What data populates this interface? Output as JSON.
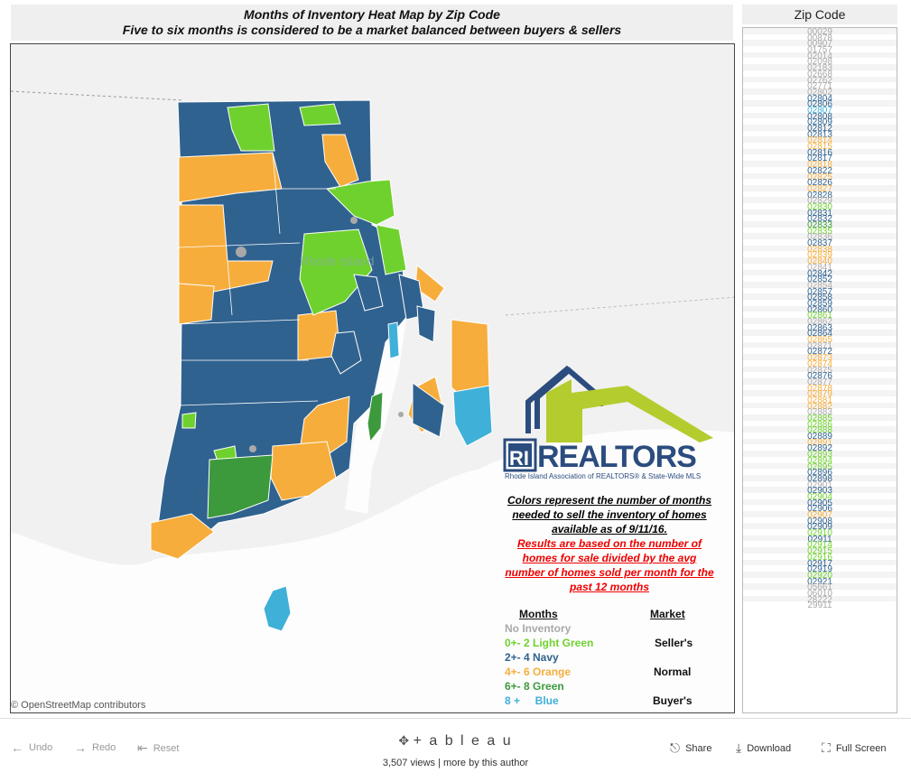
{
  "title": {
    "line1": "Months of Inventory Heat Map by Zip Code",
    "line2": "Five to six months is considered to be a market balanced between buyers & sellers"
  },
  "map": {
    "state_label": "Rhode Island",
    "attribution": "© OpenStreetMap contributors",
    "colors": {
      "no_inventory": "#a9a9a9",
      "light_green": "#6fd12e",
      "navy": "#30628f",
      "orange": "#f7ad3c",
      "green": "#3c9a3c",
      "blue": "#3fb0d8"
    }
  },
  "logo": {
    "brand": "RI REALTORS",
    "tagline": "Rhode Island Association of REALTORS® & State-Wide MLS"
  },
  "notes": {
    "black": "Colors represent the number of months needed to sell the inventory of homes available as of 9/11/16.",
    "red": "Results are based on the number of homes for sale divided by the avg number of homes sold per month for the past 12 months"
  },
  "legend": {
    "months_header": "Months",
    "market_header": "Market",
    "rows": [
      {
        "label": "No Inventory",
        "color": "#a9a9a9"
      },
      {
        "label": "0+- 2 Light Green",
        "color": "#6fd12e"
      },
      {
        "label": "2+- 4 Navy",
        "color": "#30628f"
      },
      {
        "label": "4+- 6 Orange",
        "color": "#f7ad3c"
      },
      {
        "label": "6+- 8 Green",
        "color": "#3c9a3c"
      },
      {
        "label": "8 +     Blue",
        "color": "#3fb0d8"
      }
    ],
    "markets": [
      "Seller's",
      "Normal",
      "Buyer's"
    ]
  },
  "zip_panel": {
    "header": "Zip Code",
    "zips": [
      {
        "z": "00029",
        "c": "#a9a9a9"
      },
      {
        "z": "00878",
        "c": "#a9a9a9"
      },
      {
        "z": "00907",
        "c": "#a9a9a9"
      },
      {
        "z": "01757",
        "c": "#a9a9a9"
      },
      {
        "z": "02014",
        "c": "#a9a9a9"
      },
      {
        "z": "02098",
        "c": "#a9a9a9"
      },
      {
        "z": "02183",
        "c": "#a9a9a9"
      },
      {
        "z": "02668",
        "c": "#a9a9a9"
      },
      {
        "z": "02762",
        "c": "#a9a9a9"
      },
      {
        "z": "02771",
        "c": "#a9a9a9"
      },
      {
        "z": "02802",
        "c": "#a9a9a9"
      },
      {
        "z": "02804",
        "c": "#30628f"
      },
      {
        "z": "02806",
        "c": "#30628f"
      },
      {
        "z": "02807",
        "c": "#3fb0d8"
      },
      {
        "z": "02808",
        "c": "#30628f"
      },
      {
        "z": "02809",
        "c": "#30628f"
      },
      {
        "z": "02812",
        "c": "#30628f"
      },
      {
        "z": "02813",
        "c": "#30628f"
      },
      {
        "z": "02814",
        "c": "#f7ad3c"
      },
      {
        "z": "02815",
        "c": "#f7ad3c"
      },
      {
        "z": "02816",
        "c": "#30628f"
      },
      {
        "z": "02817",
        "c": "#30628f"
      },
      {
        "z": "02818",
        "c": "#f7ad3c"
      },
      {
        "z": "02822",
        "c": "#30628f"
      },
      {
        "z": "02825",
        "c": "#f7ad3c"
      },
      {
        "z": "02826",
        "c": "#30628f"
      },
      {
        "z": "02827",
        "c": "#f7ad3c"
      },
      {
        "z": "02828",
        "c": "#30628f"
      },
      {
        "z": "02829",
        "c": "#a9a9a9"
      },
      {
        "z": "02830",
        "c": "#6fd12e"
      },
      {
        "z": "02831",
        "c": "#30628f"
      },
      {
        "z": "02832",
        "c": "#30628f"
      },
      {
        "z": "02833",
        "c": "#3c9a3c"
      },
      {
        "z": "02835",
        "c": "#6fd12e"
      },
      {
        "z": "02836",
        "c": "#a9a9a9"
      },
      {
        "z": "02837",
        "c": "#30628f"
      },
      {
        "z": "02838",
        "c": "#f7ad3c"
      },
      {
        "z": "02839",
        "c": "#f7ad3c"
      },
      {
        "z": "02840",
        "c": "#f7ad3c"
      },
      {
        "z": "02841",
        "c": "#a9a9a9"
      },
      {
        "z": "02842",
        "c": "#30628f"
      },
      {
        "z": "02852",
        "c": "#30628f"
      },
      {
        "z": "02854",
        "c": "#a9a9a9"
      },
      {
        "z": "02857",
        "c": "#30628f"
      },
      {
        "z": "02858",
        "c": "#30628f"
      },
      {
        "z": "02859",
        "c": "#30628f"
      },
      {
        "z": "02860",
        "c": "#30628f"
      },
      {
        "z": "02861",
        "c": "#6fd12e"
      },
      {
        "z": "02862",
        "c": "#a9a9a9"
      },
      {
        "z": "02863",
        "c": "#30628f"
      },
      {
        "z": "02864",
        "c": "#30628f"
      },
      {
        "z": "02865",
        "c": "#f7ad3c"
      },
      {
        "z": "02871",
        "c": "#a9a9a9"
      },
      {
        "z": "02872",
        "c": "#30628f"
      },
      {
        "z": "02873",
        "c": "#f7ad3c"
      },
      {
        "z": "02874",
        "c": "#f7ad3c"
      },
      {
        "z": "02875",
        "c": "#a9a9a9"
      },
      {
        "z": "02876",
        "c": "#30628f"
      },
      {
        "z": "02877",
        "c": "#a9a9a9"
      },
      {
        "z": "02878",
        "c": "#f7ad3c"
      },
      {
        "z": "02879",
        "c": "#f7ad3c"
      },
      {
        "z": "02881",
        "c": "#f7ad3c"
      },
      {
        "z": "02882",
        "c": "#f7ad3c"
      },
      {
        "z": "02883",
        "c": "#a9a9a9"
      },
      {
        "z": "02885",
        "c": "#6fd12e"
      },
      {
        "z": "02886",
        "c": "#6fd12e"
      },
      {
        "z": "02888",
        "c": "#6fd12e"
      },
      {
        "z": "02889",
        "c": "#30628f"
      },
      {
        "z": "02891",
        "c": "#f7ad3c"
      },
      {
        "z": "02892",
        "c": "#30628f"
      },
      {
        "z": "02893",
        "c": "#6fd12e"
      },
      {
        "z": "02894",
        "c": "#6fd12e"
      },
      {
        "z": "02895",
        "c": "#6fd12e"
      },
      {
        "z": "02896",
        "c": "#30628f"
      },
      {
        "z": "02898",
        "c": "#30628f"
      },
      {
        "z": "02901",
        "c": "#a9a9a9"
      },
      {
        "z": "02903",
        "c": "#30628f"
      },
      {
        "z": "02904",
        "c": "#6fd12e"
      },
      {
        "z": "02905",
        "c": "#30628f"
      },
      {
        "z": "02906",
        "c": "#30628f"
      },
      {
        "z": "02907",
        "c": "#f7ad3c"
      },
      {
        "z": "02908",
        "c": "#30628f"
      },
      {
        "z": "02909",
        "c": "#30628f"
      },
      {
        "z": "02910",
        "c": "#6fd12e"
      },
      {
        "z": "02911",
        "c": "#30628f"
      },
      {
        "z": "02914",
        "c": "#6fd12e"
      },
      {
        "z": "02915",
        "c": "#6fd12e"
      },
      {
        "z": "02916",
        "c": "#6fd12e"
      },
      {
        "z": "02917",
        "c": "#30628f"
      },
      {
        "z": "02919",
        "c": "#30628f"
      },
      {
        "z": "02920",
        "c": "#6fd12e"
      },
      {
        "z": "02921",
        "c": "#30628f"
      },
      {
        "z": "05661",
        "c": "#a9a9a9"
      },
      {
        "z": "06010",
        "c": "#a9a9a9"
      },
      {
        "z": "28222",
        "c": "#a9a9a9"
      },
      {
        "z": "29911",
        "c": "#a9a9a9"
      }
    ]
  },
  "footer": {
    "undo": "Undo",
    "redo": "Redo",
    "reset": "Reset",
    "brand": "+ a b l e a u",
    "views": "3,507 views",
    "separator": "|",
    "more": "more by this author",
    "share": "Share",
    "download": "Download",
    "fullscreen": "Full Screen"
  }
}
